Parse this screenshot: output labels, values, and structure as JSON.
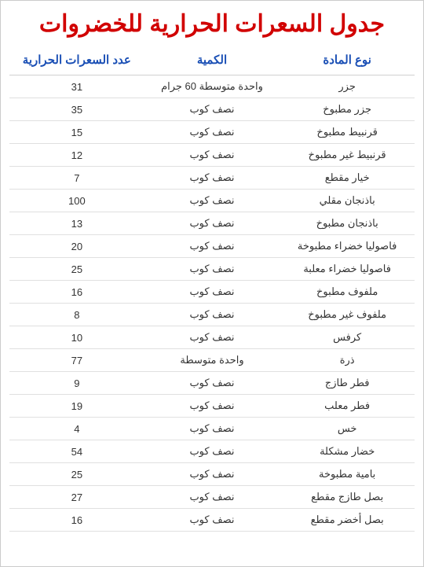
{
  "title": "جدول السعرات الحرارية للخضروات",
  "title_color": "#d10000",
  "title_fontsize": 30,
  "header_color": "#1a4fb5",
  "header_fontsize": 15,
  "row_fontsize": 13,
  "row_color": "#333333",
  "border_color": "#e0e0e0",
  "columns": [
    "نوع المادة",
    "الكمية",
    "عدد السعرات الحرارية"
  ],
  "rows": [
    {
      "material": "جزر",
      "quantity": "واحدة متوسطة 60 جرام",
      "calories": "31"
    },
    {
      "material": "جزر مطبوخ",
      "quantity": "نصف كوب",
      "calories": "35"
    },
    {
      "material": "قرنبيط مطبوخ",
      "quantity": "نصف كوب",
      "calories": "15"
    },
    {
      "material": "قرنبيط غير مطبوخ",
      "quantity": "نصف كوب",
      "calories": "12"
    },
    {
      "material": "خيار مقطع",
      "quantity": "نصف كوب",
      "calories": "7"
    },
    {
      "material": "باذنجان مقلي",
      "quantity": "نصف كوب",
      "calories": "100"
    },
    {
      "material": "باذنجان مطبوخ",
      "quantity": "نصف كوب",
      "calories": "13"
    },
    {
      "material": "فاصوليا خضراء مطبوخة",
      "quantity": "نصف كوب",
      "calories": "20"
    },
    {
      "material": "فاصوليا خضراء معلبة",
      "quantity": "نصف كوب",
      "calories": "25"
    },
    {
      "material": "ملفوف مطبوخ",
      "quantity": "نصف كوب",
      "calories": "16"
    },
    {
      "material": "ملفوف غير مطبوخ",
      "quantity": "نصف كوب",
      "calories": "8"
    },
    {
      "material": "كرفس",
      "quantity": "نصف كوب",
      "calories": "10"
    },
    {
      "material": "ذرة",
      "quantity": "واحدة متوسطة",
      "calories": "77"
    },
    {
      "material": "فطر طازج",
      "quantity": "نصف كوب",
      "calories": "9"
    },
    {
      "material": "فطر معلب",
      "quantity": "نصف كوب",
      "calories": "19"
    },
    {
      "material": "خس",
      "quantity": "نصف كوب",
      "calories": "4"
    },
    {
      "material": "خضار مشكلة",
      "quantity": "نصف كوب",
      "calories": "54"
    },
    {
      "material": "بامية مطبوخة",
      "quantity": "نصف كوب",
      "calories": "25"
    },
    {
      "material": "بصل طازج مقطع",
      "quantity": "نصف كوب",
      "calories": "27"
    },
    {
      "material": "بصل أخضر مقطع",
      "quantity": "نصف كوب",
      "calories": "16"
    }
  ]
}
